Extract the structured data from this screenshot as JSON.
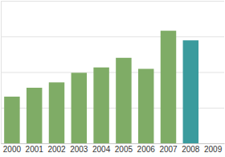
{
  "chart_data": {
    "type": "bar",
    "categories": [
      "2000",
      "2001",
      "2002",
      "2003",
      "2004",
      "2005",
      "2006",
      "2007",
      "2008",
      "2009"
    ],
    "values": [
      1.31,
      1.56,
      1.71,
      1.98,
      2.13,
      2.4,
      2.09,
      3.16,
      2.89,
      null
    ],
    "colors": [
      "#7fac66",
      "#7fac66",
      "#7fac66",
      "#7fac66",
      "#7fac66",
      "#7fac66",
      "#7fac66",
      "#7fac66",
      "#3a9b9d",
      "#7fac66"
    ],
    "ylim": [
      0,
      4
    ],
    "yticks": [
      0,
      1,
      2,
      3,
      4
    ],
    "grid": true,
    "tick_labels": "x"
  }
}
